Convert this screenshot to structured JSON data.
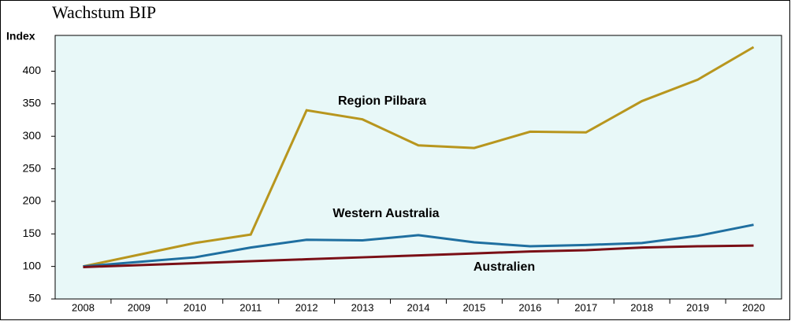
{
  "chart_data": {
    "type": "line",
    "title": "Wachstum BIP",
    "y_label": "Index",
    "categories": [
      "2008",
      "2009",
      "2010",
      "2011",
      "2012",
      "2013",
      "2014",
      "2015",
      "2016",
      "2017",
      "2018",
      "2019",
      "2020"
    ],
    "series": [
      {
        "name": "Region Pilbara",
        "color": "#b8961e",
        "values": [
          100,
          118,
          136,
          149,
          340,
          326,
          286,
          282,
          307,
          306,
          354,
          387,
          437
        ]
      },
      {
        "name": "Western Australia",
        "color": "#1f6fa0",
        "values": [
          100,
          107,
          114,
          129,
          141,
          140,
          148,
          137,
          131,
          133,
          136,
          147,
          164
        ]
      },
      {
        "name": "Australien",
        "color": "#7a0f16",
        "values": [
          99,
          102,
          105,
          108,
          111,
          114,
          117,
          120,
          123,
          125,
          129,
          131,
          132
        ]
      }
    ],
    "ylim": [
      50,
      455
    ],
    "yticks": [
      50,
      100,
      150,
      200,
      250,
      300,
      350,
      400
    ]
  }
}
